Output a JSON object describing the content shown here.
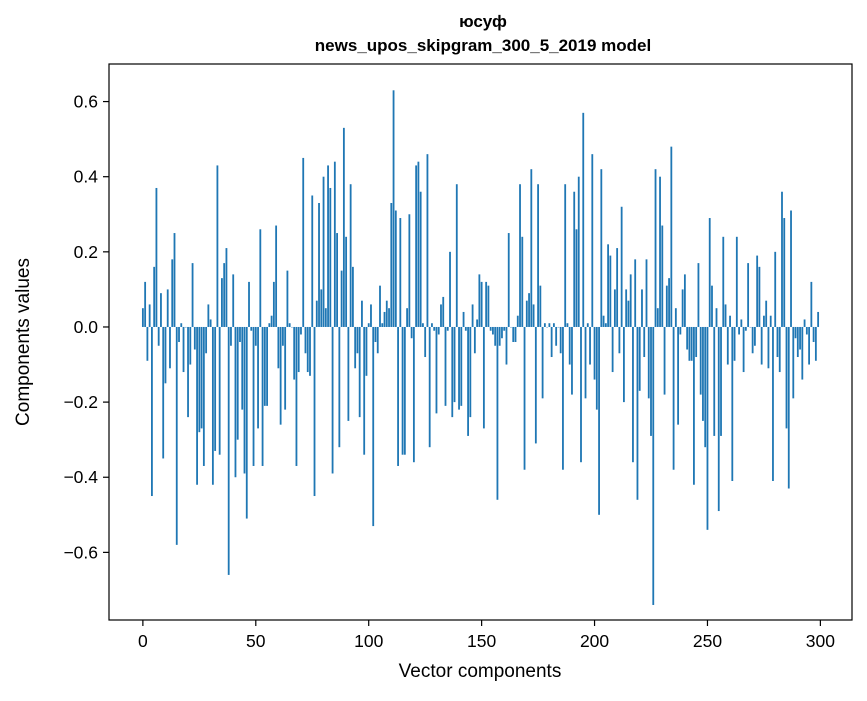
{
  "chart_data": {
    "type": "bar",
    "title_line1": "юсуф",
    "title_line2": "news_upos_skipgram_300_5_2019 model",
    "xlabel": "Vector components",
    "ylabel": "Components values",
    "xlim": [
      -15,
      314
    ],
    "ylim": [
      -0.78,
      0.7
    ],
    "xticks": [
      0,
      50,
      100,
      150,
      200,
      250,
      300
    ],
    "xtick_labels": [
      "0",
      "50",
      "100",
      "150",
      "200",
      "250",
      "300"
    ],
    "yticks": [
      -0.6,
      -0.4,
      -0.2,
      0.0,
      0.2,
      0.4,
      0.6
    ],
    "ytick_labels": [
      "−0.6",
      "−0.4",
      "−0.2",
      "0.0",
      "0.2",
      "0.4",
      "0.6"
    ],
    "bar_color": "#1f77b4",
    "grid": false,
    "x_start": 0,
    "values": [
      0.05,
      0.12,
      -0.09,
      0.06,
      -0.45,
      0.16,
      0.37,
      -0.05,
      0.09,
      -0.35,
      -0.15,
      0.1,
      -0.11,
      0.18,
      0.25,
      -0.58,
      -0.04,
      0.01,
      -0.12,
      0.0,
      -0.24,
      -0.1,
      0.17,
      -0.06,
      -0.42,
      -0.28,
      -0.27,
      -0.37,
      -0.07,
      0.06,
      0.02,
      -0.42,
      -0.33,
      0.43,
      -0.34,
      0.13,
      0.17,
      0.21,
      -0.66,
      -0.05,
      0.14,
      -0.4,
      -0.3,
      -0.04,
      -0.22,
      -0.39,
      -0.51,
      0.12,
      -0.01,
      -0.37,
      -0.05,
      -0.27,
      0.26,
      -0.37,
      -0.21,
      -0.21,
      0.01,
      0.03,
      0.12,
      0.27,
      -0.11,
      -0.26,
      -0.05,
      -0.22,
      0.15,
      0.01,
      0.0,
      -0.14,
      -0.37,
      -0.12,
      -0.02,
      0.45,
      -0.07,
      -0.12,
      -0.13,
      0.35,
      -0.45,
      0.07,
      0.33,
      0.1,
      0.4,
      0.05,
      0.43,
      0.37,
      -0.39,
      0.44,
      0.25,
      -0.32,
      0.15,
      0.53,
      0.24,
      -0.25,
      0.38,
      0.16,
      -0.11,
      -0.07,
      -0.24,
      0.07,
      -0.34,
      -0.13,
      0.01,
      0.06,
      -0.53,
      -0.04,
      -0.07,
      0.11,
      0.01,
      0.04,
      0.07,
      0.05,
      0.33,
      0.63,
      0.31,
      -0.37,
      0.29,
      -0.34,
      -0.34,
      0.05,
      0.3,
      -0.03,
      -0.36,
      0.43,
      0.44,
      0.36,
      0.01,
      -0.08,
      0.46,
      -0.32,
      0.01,
      -0.01,
      -0.23,
      -0.02,
      0.06,
      0.08,
      -0.21,
      -0.01,
      0.2,
      -0.24,
      -0.2,
      0.38,
      -0.22,
      -0.21,
      0.04,
      -0.01,
      -0.29,
      -0.24,
      0.06,
      -0.07,
      0.02,
      0.14,
      0.12,
      -0.27,
      0.12,
      0.11,
      -0.01,
      -0.02,
      -0.05,
      -0.46,
      -0.05,
      -0.03,
      -0.01,
      -0.1,
      0.25,
      0.0,
      -0.04,
      -0.04,
      0.03,
      0.38,
      0.24,
      -0.38,
      0.07,
      0.09,
      0.42,
      0.06,
      -0.31,
      0.38,
      0.11,
      -0.19,
      0.01,
      0.0,
      0.01,
      -0.08,
      0.01,
      -0.05,
      0.0,
      -0.07,
      -0.38,
      0.38,
      0.01,
      -0.1,
      -0.18,
      0.36,
      0.26,
      0.4,
      -0.36,
      0.57,
      -0.19,
      0.01,
      -0.1,
      0.46,
      -0.14,
      -0.22,
      -0.5,
      0.42,
      0.03,
      0.01,
      0.22,
      0.19,
      -0.12,
      0.1,
      0.21,
      -0.07,
      0.32,
      -0.2,
      0.1,
      0.07,
      0.14,
      -0.36,
      0.18,
      -0.46,
      -0.17,
      0.1,
      -0.08,
      0.18,
      -0.19,
      -0.29,
      -0.74,
      0.42,
      0.05,
      0.4,
      0.27,
      -0.18,
      0.11,
      0.13,
      0.48,
      -0.38,
      0.05,
      -0.26,
      -0.02,
      0.1,
      0.14,
      -0.06,
      -0.09,
      -0.09,
      -0.42,
      -0.08,
      0.17,
      -0.18,
      -0.25,
      -0.32,
      -0.54,
      0.29,
      0.11,
      -0.29,
      0.05,
      -0.49,
      -0.29,
      0.24,
      0.06,
      -0.1,
      0.03,
      -0.41,
      -0.09,
      0.24,
      -0.02,
      0.02,
      -0.12,
      -0.01,
      0.17,
      0.0,
      -0.07,
      -0.05,
      0.19,
      0.16,
      -0.1,
      0.03,
      0.07,
      -0.11,
      0.03,
      -0.41,
      0.2,
      -0.08,
      -0.12,
      0.36,
      0.29,
      -0.27,
      -0.43,
      0.31,
      -0.19,
      -0.03,
      -0.08,
      -0.06,
      -0.14,
      0.02,
      -0.02,
      -0.1,
      0.12,
      -0.04,
      -0.09,
      0.04
    ]
  }
}
